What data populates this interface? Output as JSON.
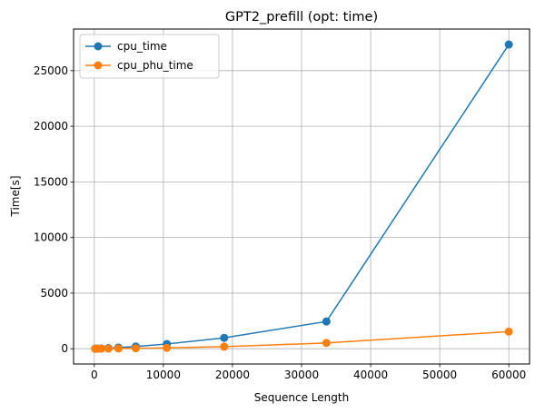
{
  "chart_data": {
    "type": "line",
    "title": "GPT2_prefill (opt: time)",
    "xlabel": "Sequence Length",
    "ylabel": "Time[s]",
    "xlim": [
      -3000,
      63000
    ],
    "ylim": [
      -1370,
      28740
    ],
    "xticks": [
      0,
      10000,
      20000,
      30000,
      40000,
      50000,
      60000
    ],
    "yticks": [
      0,
      5000,
      10000,
      15000,
      20000,
      25000
    ],
    "grid": true,
    "legend_position": "top-left",
    "series": [
      {
        "name": "cpu_time",
        "color": "#1f77b4",
        "x": [
          128,
          256,
          512,
          1024,
          2048,
          3500,
          6000,
          10500,
          18800,
          33600,
          60000
        ],
        "y": [
          2,
          5,
          10,
          25,
          60,
          110,
          200,
          430,
          980,
          2450,
          27350
        ]
      },
      {
        "name": "cpu_phu_time",
        "color": "#ff7f0e",
        "x": [
          128,
          256,
          512,
          1024,
          2048,
          3500,
          6000,
          10500,
          18800,
          33600,
          60000
        ],
        "y": [
          1,
          2,
          4,
          8,
          15,
          25,
          40,
          80,
          190,
          520,
          1540
        ]
      }
    ]
  }
}
